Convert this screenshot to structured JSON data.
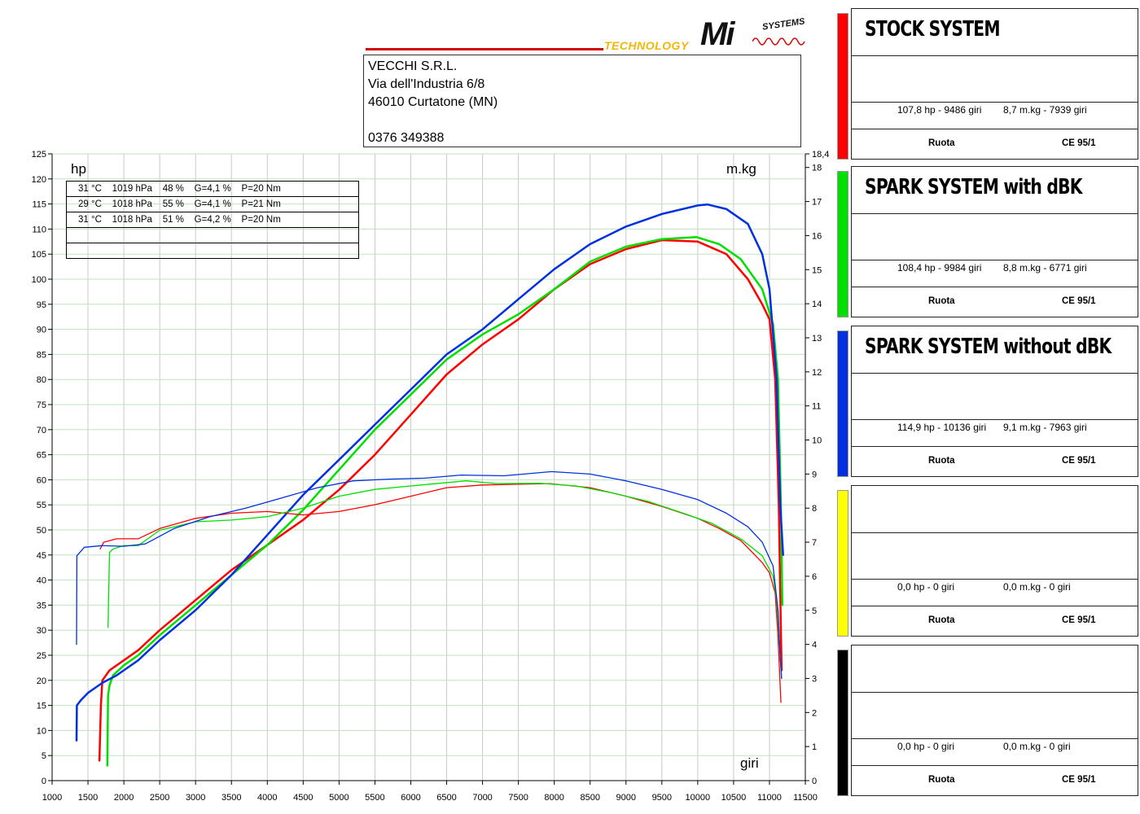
{
  "header": {
    "logo": {
      "tech": "TECHNOLOGY",
      "mi": "Mi",
      "systems": "SYSTEMS"
    },
    "address_lines": [
      "VECCHI S.R.L.",
      "Via dell'Industria 6/8",
      "46010 Curtatone (MN)",
      "",
      "0376 349388"
    ]
  },
  "conditions": [
    "31 °C    1019 hPa    48 %    G=4,1 %    P=20 Nm",
    "29 °C    1018 hPa    55 %    G=4,1 %    P=21 Nm",
    "31 °C    1018 hPa    51 %    G=4,2 %    P=20 Nm",
    "",
    ""
  ],
  "legend": [
    {
      "title": "STOCK SYSTEM",
      "color": "#ff0000",
      "hp": "107,8 hp - 9486 giri",
      "mkg": "8,7 m.kg - 7939 giri",
      "ruota": "Ruota",
      "norm": "CE 95/1"
    },
    {
      "title": "SPARK SYSTEM with dBK",
      "color": "#00e000",
      "hp": "108,4 hp - 9984 giri",
      "mkg": "8,8 m.kg - 6771 giri",
      "ruota": "Ruota",
      "norm": "CE 95/1"
    },
    {
      "title": "SPARK SYSTEM without dBK",
      "color": "#0030e0",
      "hp": "114,9 hp - 10136 giri",
      "mkg": "9,1 m.kg - 7963 giri",
      "ruota": "Ruota",
      "norm": "CE 95/1"
    },
    {
      "title": "",
      "color": "#ffff00",
      "hp": "0,0 hp - 0 giri",
      "mkg": "0,0 m.kg - 0 giri",
      "ruota": "Ruota",
      "norm": "CE 95/1"
    },
    {
      "title": "",
      "color": "#000000",
      "hp": "0,0 hp - 0 giri",
      "mkg": "0,0 m.kg - 0 giri",
      "ruota": "Ruota",
      "norm": "CE 95/1"
    }
  ],
  "chart_data": {
    "type": "line",
    "xlabel": "giri",
    "ylabel_left": "hp",
    "ylabel_right": "m.kg",
    "xlim": [
      1000,
      11500
    ],
    "ylim_left": [
      0,
      125
    ],
    "ylim_right": [
      0,
      18.4
    ],
    "x_ticks": [
      1000,
      1500,
      2000,
      2500,
      3000,
      3500,
      4000,
      4500,
      5000,
      5500,
      6000,
      6500,
      7000,
      7500,
      8000,
      8500,
      9000,
      9500,
      10000,
      10500,
      11000,
      11500
    ],
    "y_left_ticks": [
      0,
      5,
      10,
      15,
      20,
      25,
      30,
      35,
      40,
      45,
      50,
      55,
      60,
      65,
      70,
      75,
      80,
      85,
      90,
      95,
      100,
      105,
      110,
      115,
      120,
      125
    ],
    "y_right_ticks": [
      0,
      1,
      2,
      3,
      4,
      5,
      6,
      7,
      8,
      9,
      10,
      11,
      12,
      13,
      14,
      15,
      16,
      17,
      18,
      18.4
    ],
    "y_right_tick_labels": [
      "0",
      "1",
      "2",
      "3",
      "4",
      "5",
      "6",
      "7",
      "8",
      "9",
      "10",
      "11",
      "12",
      "13",
      "14",
      "15",
      "16",
      "17",
      "18",
      "18,4"
    ],
    "grid": true,
    "series": [
      {
        "name": "STOCK SYSTEM",
        "color": "#ff0000",
        "axis": "left",
        "width": 2.5,
        "points": [
          [
            1660,
            4
          ],
          [
            1680,
            15
          ],
          [
            1700,
            20
          ],
          [
            1800,
            22
          ],
          [
            2000,
            24
          ],
          [
            2200,
            26
          ],
          [
            2500,
            30
          ],
          [
            3000,
            36
          ],
          [
            3500,
            42
          ],
          [
            4000,
            47
          ],
          [
            4500,
            52
          ],
          [
            5000,
            58
          ],
          [
            5500,
            65
          ],
          [
            6000,
            73
          ],
          [
            6500,
            81
          ],
          [
            7000,
            87
          ],
          [
            7500,
            92
          ],
          [
            8000,
            98
          ],
          [
            8500,
            103
          ],
          [
            9000,
            106
          ],
          [
            9500,
            107.8
          ],
          [
            10000,
            107.5
          ],
          [
            10400,
            105
          ],
          [
            10700,
            100
          ],
          [
            10900,
            95
          ],
          [
            11000,
            92
          ],
          [
            11080,
            80
          ],
          [
            11130,
            55
          ],
          [
            11160,
            30
          ],
          [
            11170,
            22
          ]
        ]
      },
      {
        "name": "SPARK SYSTEM with dBK",
        "color": "#00e000",
        "axis": "left",
        "width": 2.5,
        "points": [
          [
            1770,
            3
          ],
          [
            1780,
            17
          ],
          [
            1800,
            19
          ],
          [
            1850,
            21
          ],
          [
            2000,
            23
          ],
          [
            2200,
            25
          ],
          [
            2500,
            29
          ],
          [
            3000,
            35
          ],
          [
            3500,
            41
          ],
          [
            4000,
            47
          ],
          [
            4500,
            54
          ],
          [
            5000,
            62
          ],
          [
            5500,
            70
          ],
          [
            6000,
            77
          ],
          [
            6500,
            84
          ],
          [
            7000,
            89
          ],
          [
            7500,
            93
          ],
          [
            8000,
            98
          ],
          [
            8500,
            103.5
          ],
          [
            9000,
            106.5
          ],
          [
            9500,
            108
          ],
          [
            9984,
            108.4
          ],
          [
            10300,
            107
          ],
          [
            10600,
            104
          ],
          [
            10900,
            98
          ],
          [
            11050,
            91
          ],
          [
            11120,
            80
          ],
          [
            11160,
            55
          ],
          [
            11180,
            35
          ]
        ]
      },
      {
        "name": "SPARK SYSTEM without dBK",
        "color": "#0030e0",
        "axis": "left",
        "width": 2.5,
        "points": [
          [
            1340,
            8
          ],
          [
            1345,
            15
          ],
          [
            1400,
            16
          ],
          [
            1500,
            17.5
          ],
          [
            1700,
            19.5
          ],
          [
            1900,
            21
          ],
          [
            2200,
            24
          ],
          [
            2500,
            28
          ],
          [
            3000,
            34
          ],
          [
            3500,
            41
          ],
          [
            4000,
            49
          ],
          [
            4500,
            57
          ],
          [
            5000,
            64
          ],
          [
            5500,
            71
          ],
          [
            6000,
            78
          ],
          [
            6500,
            85
          ],
          [
            7000,
            90
          ],
          [
            7500,
            96
          ],
          [
            8000,
            102
          ],
          [
            8500,
            107
          ],
          [
            9000,
            110.5
          ],
          [
            9500,
            113
          ],
          [
            10000,
            114.7
          ],
          [
            10136,
            114.9
          ],
          [
            10400,
            114
          ],
          [
            10700,
            111
          ],
          [
            10900,
            105
          ],
          [
            11000,
            98
          ],
          [
            11100,
            80
          ],
          [
            11150,
            55
          ],
          [
            11190,
            45
          ]
        ]
      },
      {
        "name": "STOCK SYSTEM",
        "color": "#ff0000",
        "axis": "right",
        "width": 1.3,
        "points": [
          [
            1670,
            6.8
          ],
          [
            1720,
            7.0
          ],
          [
            1900,
            7.1
          ],
          [
            2200,
            7.1
          ],
          [
            2500,
            7.4
          ],
          [
            3000,
            7.7
          ],
          [
            3500,
            7.85
          ],
          [
            4000,
            7.9
          ],
          [
            4500,
            7.8
          ],
          [
            5000,
            7.9
          ],
          [
            5500,
            8.1
          ],
          [
            6000,
            8.35
          ],
          [
            6500,
            8.6
          ],
          [
            7000,
            8.68
          ],
          [
            7500,
            8.7
          ],
          [
            7939,
            8.72
          ],
          [
            8500,
            8.6
          ],
          [
            9000,
            8.35
          ],
          [
            9500,
            8.05
          ],
          [
            10000,
            7.7
          ],
          [
            10300,
            7.4
          ],
          [
            10600,
            7.05
          ],
          [
            10900,
            6.4
          ],
          [
            11000,
            6.1
          ],
          [
            11080,
            5.5
          ],
          [
            11120,
            4.2
          ],
          [
            11160,
            2.3
          ]
        ]
      },
      {
        "name": "SPARK SYSTEM with dBK",
        "color": "#00e000",
        "axis": "right",
        "width": 1.3,
        "points": [
          [
            1780,
            4.5
          ],
          [
            1800,
            6.7
          ],
          [
            1850,
            6.8
          ],
          [
            2000,
            6.9
          ],
          [
            2200,
            6.9
          ],
          [
            2500,
            7.35
          ],
          [
            3000,
            7.6
          ],
          [
            3500,
            7.65
          ],
          [
            4000,
            7.75
          ],
          [
            4500,
            8.0
          ],
          [
            5000,
            8.35
          ],
          [
            5500,
            8.55
          ],
          [
            6000,
            8.65
          ],
          [
            6771,
            8.8
          ],
          [
            7200,
            8.72
          ],
          [
            7800,
            8.73
          ],
          [
            8300,
            8.65
          ],
          [
            8800,
            8.45
          ],
          [
            9300,
            8.2
          ],
          [
            9800,
            7.85
          ],
          [
            10200,
            7.55
          ],
          [
            10600,
            7.1
          ],
          [
            10900,
            6.6
          ],
          [
            11050,
            6.0
          ],
          [
            11100,
            5.3
          ],
          [
            11140,
            4.0
          ],
          [
            11170,
            3.0
          ]
        ]
      },
      {
        "name": "SPARK SYSTEM without dBK",
        "color": "#0030e0",
        "axis": "right",
        "width": 1.3,
        "points": [
          [
            1340,
            4.0
          ],
          [
            1345,
            6.6
          ],
          [
            1450,
            6.85
          ],
          [
            1700,
            6.9
          ],
          [
            2000,
            6.88
          ],
          [
            2300,
            6.95
          ],
          [
            2700,
            7.4
          ],
          [
            3200,
            7.75
          ],
          [
            3700,
            8.0
          ],
          [
            4200,
            8.3
          ],
          [
            4700,
            8.6
          ],
          [
            5200,
            8.8
          ],
          [
            5700,
            8.85
          ],
          [
            6200,
            8.88
          ],
          [
            6700,
            8.97
          ],
          [
            7300,
            8.95
          ],
          [
            7963,
            9.07
          ],
          [
            8500,
            9.0
          ],
          [
            9000,
            8.8
          ],
          [
            9500,
            8.55
          ],
          [
            10000,
            8.25
          ],
          [
            10400,
            7.85
          ],
          [
            10700,
            7.45
          ],
          [
            10900,
            7.0
          ],
          [
            11050,
            6.3
          ],
          [
            11120,
            5.0
          ],
          [
            11150,
            3.6
          ],
          [
            11170,
            3.0
          ]
        ]
      }
    ]
  }
}
